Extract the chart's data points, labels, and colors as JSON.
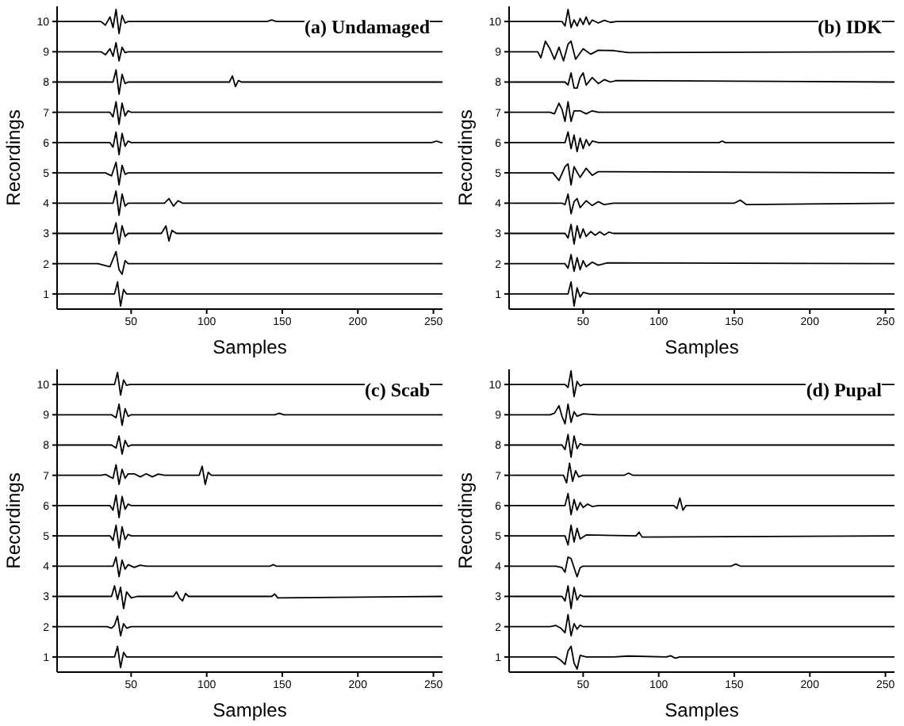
{
  "chart_data": [
    {
      "type": "line",
      "xlabel": "Samples",
      "ylabel": "Recordings",
      "annotations": [
        "(a) Undamaged"
      ],
      "xlim": [
        1,
        256
      ],
      "xticks": [
        50,
        100,
        150,
        200,
        250
      ],
      "ylim": [
        0.5,
        10.5
      ],
      "yticks": [
        1,
        2,
        3,
        4,
        5,
        6,
        7,
        8,
        9,
        10
      ],
      "series": [
        {
          "color": "#000000",
          "x": [
            1,
            30,
            33,
            36,
            38,
            40,
            42,
            44,
            46,
            48,
            140,
            143,
            146,
            256
          ],
          "values": [
            10,
            10,
            9.88,
            10.15,
            9.8,
            10.4,
            9.6,
            10.2,
            9.95,
            10,
            10,
            10.05,
            10,
            10
          ]
        },
        {
          "color": "#000000",
          "x": [
            1,
            30,
            33,
            36,
            38,
            40,
            42,
            44,
            46,
            48,
            256
          ],
          "values": [
            9,
            9,
            8.9,
            9.1,
            8.85,
            9.3,
            8.7,
            9.15,
            8.97,
            9,
            9
          ]
        },
        {
          "color": "#000000",
          "x": [
            1,
            38,
            40,
            42,
            44,
            46,
            48,
            115,
            117,
            119,
            121,
            123,
            256
          ],
          "values": [
            8,
            8,
            8.4,
            7.6,
            8.25,
            7.95,
            8,
            8,
            8.2,
            7.85,
            8.05,
            8,
            8
          ]
        },
        {
          "color": "#000000",
          "x": [
            1,
            36,
            38,
            40,
            42,
            44,
            46,
            48,
            50,
            256
          ],
          "values": [
            7,
            7,
            6.85,
            7.35,
            6.6,
            7.3,
            6.88,
            7.05,
            7,
            7
          ]
        },
        {
          "color": "#000000",
          "x": [
            1,
            36,
            38,
            40,
            42,
            44,
            46,
            48,
            50,
            249,
            252,
            255,
            256
          ],
          "values": [
            6,
            6,
            5.85,
            6.35,
            5.6,
            6.3,
            5.88,
            6.05,
            6,
            6,
            6.05,
            6,
            6
          ]
        },
        {
          "color": "#000000",
          "x": [
            1,
            33,
            37,
            40,
            42,
            44,
            46,
            48,
            256
          ],
          "values": [
            5,
            5,
            4.9,
            5.35,
            4.6,
            5.25,
            4.95,
            5,
            5
          ]
        },
        {
          "color": "#000000",
          "x": [
            1,
            38,
            40,
            42,
            44,
            46,
            48,
            72,
            75,
            78,
            81,
            84,
            256
          ],
          "values": [
            4,
            4,
            4.4,
            3.6,
            4.3,
            3.9,
            4,
            4,
            4.15,
            3.9,
            4.08,
            4,
            4
          ]
        },
        {
          "color": "#000000",
          "x": [
            1,
            38,
            40,
            42,
            44,
            46,
            48,
            70,
            73,
            75,
            77,
            80,
            83,
            256
          ],
          "values": [
            3,
            3,
            3.35,
            2.65,
            3.25,
            2.9,
            3,
            3,
            3.25,
            2.75,
            3.1,
            3,
            3,
            3
          ]
        },
        {
          "color": "#000000",
          "x": [
            1,
            28,
            32,
            36,
            40,
            42,
            44,
            46,
            48,
            256
          ],
          "values": [
            2,
            2,
            1.95,
            1.9,
            2.4,
            1.8,
            1.65,
            2.1,
            2,
            2
          ]
        },
        {
          "color": "#000000",
          "x": [
            1,
            39,
            41,
            43,
            45,
            47,
            256
          ],
          "values": [
            1,
            1,
            1.4,
            0.6,
            1.15,
            1,
            1
          ]
        }
      ]
    },
    {
      "type": "line",
      "xlabel": "Samples",
      "ylabel": "Recordings",
      "annotations": [
        "(b) IDK"
      ],
      "xlim": [
        1,
        256
      ],
      "xticks": [
        50,
        100,
        150,
        200,
        250
      ],
      "ylim": [
        0.5,
        10.5
      ],
      "yticks": [
        1,
        2,
        3,
        4,
        5,
        6,
        7,
        8,
        9,
        10
      ],
      "series": [
        {
          "color": "#000000",
          "x": [
            1,
            36,
            38,
            40,
            42,
            44,
            46,
            48,
            50,
            52,
            54,
            56,
            60,
            64,
            68,
            72,
            256
          ],
          "values": [
            10,
            10,
            9.85,
            10.4,
            9.8,
            10.05,
            9.85,
            10.1,
            9.9,
            10.15,
            9.9,
            10.05,
            9.95,
            10.04,
            9.97,
            10,
            10
          ]
        },
        {
          "color": "#000000",
          "x": [
            1,
            20,
            22,
            25,
            28,
            31,
            34,
            37,
            40,
            42,
            45,
            50,
            55,
            60,
            70,
            80,
            256
          ],
          "values": [
            9,
            9,
            8.8,
            9.35,
            9.1,
            8.75,
            9.15,
            8.7,
            9.25,
            9.35,
            8.75,
            9.1,
            8.92,
            9.05,
            9.04,
            8.97,
            9
          ]
        },
        {
          "color": "#000000",
          "x": [
            1,
            38,
            40,
            42,
            44,
            46,
            48,
            50,
            52,
            56,
            60,
            64,
            68,
            72,
            256
          ],
          "values": [
            8,
            8,
            7.9,
            8.3,
            7.8,
            7.8,
            8.15,
            8.3,
            7.9,
            8.15,
            7.95,
            8.08,
            8,
            8.05,
            8
          ]
        },
        {
          "color": "#000000",
          "x": [
            1,
            28,
            31,
            34,
            36,
            38,
            40,
            42,
            44,
            48,
            52,
            56,
            60,
            256
          ],
          "values": [
            7,
            7,
            6.95,
            7.3,
            7.1,
            6.7,
            7.35,
            6.7,
            7.05,
            7.05,
            6.95,
            7.05,
            7,
            7
          ]
        },
        {
          "color": "#000000",
          "x": [
            1,
            38,
            40,
            42,
            44,
            46,
            48,
            50,
            52,
            54,
            56,
            60,
            140,
            142,
            144,
            256
          ],
          "values": [
            6,
            6,
            6.35,
            5.8,
            6.25,
            5.7,
            6.15,
            5.8,
            6.1,
            5.9,
            6.05,
            6,
            6,
            6.05,
            6,
            6
          ]
        },
        {
          "color": "#000000",
          "x": [
            1,
            30,
            34,
            38,
            40,
            42,
            44,
            48,
            52,
            56,
            60,
            256
          ],
          "values": [
            5,
            5,
            4.75,
            5.2,
            5.3,
            4.6,
            5.2,
            4.85,
            5.15,
            4.92,
            5.04,
            5
          ]
        },
        {
          "color": "#000000",
          "x": [
            1,
            36,
            38,
            40,
            42,
            44,
            46,
            48,
            52,
            56,
            60,
            64,
            70,
            150,
            154,
            158,
            256
          ],
          "values": [
            4,
            4,
            3.95,
            4.3,
            3.65,
            4.05,
            4.15,
            3.85,
            4.08,
            3.92,
            4.05,
            3.95,
            4,
            4,
            4.1,
            3.95,
            4
          ]
        },
        {
          "color": "#000000",
          "x": [
            1,
            38,
            40,
            42,
            44,
            46,
            48,
            50,
            52,
            55,
            58,
            61,
            64,
            67,
            70,
            256
          ],
          "values": [
            3,
            3,
            2.85,
            3.3,
            2.65,
            3.25,
            2.85,
            3.15,
            2.9,
            3.06,
            2.94,
            3.05,
            2.95,
            3.04,
            3,
            3
          ]
        },
        {
          "color": "#000000",
          "x": [
            1,
            38,
            40,
            42,
            44,
            46,
            48,
            50,
            52,
            56,
            60,
            66,
            256
          ],
          "values": [
            2,
            2,
            1.85,
            2.3,
            1.75,
            2.2,
            1.8,
            2.1,
            1.9,
            2.05,
            1.95,
            2.03,
            2
          ]
        },
        {
          "color": "#000000",
          "x": [
            1,
            40,
            42,
            44,
            46,
            48,
            50,
            54,
            256
          ],
          "values": [
            1,
            1,
            1.4,
            0.6,
            1.2,
            0.9,
            1.05,
            1,
            1
          ]
        }
      ]
    },
    {
      "type": "line",
      "xlabel": "Samples",
      "ylabel": "Recordings",
      "annotations": [
        "(c) Scab"
      ],
      "xlim": [
        1,
        256
      ],
      "xticks": [
        50,
        100,
        150,
        200,
        250
      ],
      "ylim": [
        0.5,
        10.5
      ],
      "yticks": [
        1,
        2,
        3,
        4,
        5,
        6,
        7,
        8,
        9,
        10
      ],
      "series": [
        {
          "color": "#000000",
          "x": [
            1,
            39,
            41,
            43,
            45,
            47,
            49,
            256
          ],
          "values": [
            10,
            10,
            10.4,
            9.65,
            10.15,
            9.97,
            10,
            10
          ]
        },
        {
          "color": "#000000",
          "x": [
            1,
            37,
            40,
            42,
            44,
            46,
            48,
            50,
            145,
            148,
            151,
            256
          ],
          "values": [
            9,
            9,
            8.9,
            9.35,
            8.65,
            9.2,
            8.95,
            9,
            9,
            9.05,
            9,
            9
          ]
        },
        {
          "color": "#000000",
          "x": [
            1,
            37,
            40,
            42,
            44,
            46,
            48,
            50,
            256
          ],
          "values": [
            8,
            8,
            7.9,
            8.3,
            7.7,
            8.15,
            7.95,
            8,
            8
          ]
        },
        {
          "color": "#000000",
          "x": [
            1,
            30,
            33,
            36,
            38,
            40,
            42,
            44,
            46,
            48,
            52,
            56,
            60,
            64,
            68,
            72,
            95,
            97,
            99,
            101,
            103,
            256
          ],
          "values": [
            7,
            7,
            7.03,
            6.95,
            6.9,
            7.35,
            6.7,
            7.2,
            6.9,
            7.05,
            7.05,
            6.95,
            7.05,
            6.95,
            7.04,
            7,
            7,
            7.3,
            6.7,
            7.1,
            7,
            7
          ]
        },
        {
          "color": "#000000",
          "x": [
            1,
            36,
            38,
            40,
            42,
            44,
            46,
            48,
            50,
            256
          ],
          "values": [
            6,
            6,
            5.85,
            6.35,
            5.6,
            6.3,
            5.88,
            6.05,
            6,
            6
          ]
        },
        {
          "color": "#000000",
          "x": [
            1,
            36,
            38,
            40,
            42,
            44,
            46,
            48,
            50,
            256
          ],
          "values": [
            5,
            5,
            4.85,
            5.35,
            4.6,
            5.3,
            4.88,
            5.05,
            5,
            5
          ]
        },
        {
          "color": "#000000",
          "x": [
            1,
            38,
            40,
            42,
            44,
            46,
            48,
            52,
            56,
            60,
            142,
            144,
            146,
            256
          ],
          "values": [
            4,
            4,
            4.3,
            3.65,
            4.2,
            3.9,
            4.05,
            3.96,
            4.03,
            4,
            4,
            4.05,
            4,
            4
          ]
        },
        {
          "color": "#000000",
          "x": [
            1,
            37,
            39,
            41,
            43,
            45,
            47,
            50,
            54,
            78,
            80,
            82,
            84,
            86,
            88,
            143,
            145,
            147,
            256
          ],
          "values": [
            3,
            3,
            3.35,
            2.9,
            3.3,
            2.6,
            3.15,
            2.95,
            3,
            3,
            3.15,
            2.95,
            2.85,
            3.1,
            3,
            3,
            3.08,
            2.95,
            3
          ]
        },
        {
          "color": "#000000",
          "x": [
            1,
            34,
            37,
            39,
            41,
            43,
            45,
            47,
            50,
            256
          ],
          "values": [
            2,
            2,
            1.95,
            2.05,
            2.35,
            1.7,
            2.1,
            1.95,
            2,
            2
          ]
        },
        {
          "color": "#000000",
          "x": [
            1,
            39,
            41,
            43,
            45,
            47,
            256
          ],
          "values": [
            1,
            1,
            1.35,
            0.65,
            1.15,
            1,
            1
          ]
        }
      ]
    },
    {
      "type": "line",
      "xlabel": "Samples",
      "ylabel": "Recordings",
      "annotations": [
        "(d) Pupal"
      ],
      "xlim": [
        1,
        256
      ],
      "xticks": [
        50,
        100,
        150,
        200,
        250
      ],
      "ylim": [
        0.5,
        10.5
      ],
      "yticks": [
        1,
        2,
        3,
        4,
        5,
        6,
        7,
        8,
        9,
        10
      ],
      "series": [
        {
          "color": "#000000",
          "x": [
            1,
            38,
            40,
            42,
            44,
            46,
            48,
            50,
            256
          ],
          "values": [
            10,
            10,
            9.9,
            10.45,
            9.6,
            10.1,
            9.95,
            10,
            10
          ]
        },
        {
          "color": "#000000",
          "x": [
            1,
            28,
            31,
            34,
            36,
            38,
            40,
            42,
            44,
            46,
            50,
            60,
            256
          ],
          "values": [
            9,
            9,
            9.05,
            9.3,
            8.95,
            8.7,
            9.35,
            8.75,
            9.1,
            8.95,
            9.03,
            9,
            9
          ]
        },
        {
          "color": "#000000",
          "x": [
            1,
            36,
            38,
            40,
            42,
            44,
            46,
            48,
            50,
            256
          ],
          "values": [
            8,
            8,
            7.85,
            8.35,
            7.6,
            8.3,
            7.88,
            8.05,
            8,
            8
          ]
        },
        {
          "color": "#000000",
          "x": [
            1,
            37,
            39,
            41,
            43,
            45,
            47,
            50,
            77,
            80,
            83,
            256
          ],
          "values": [
            7,
            7,
            6.75,
            7.4,
            6.8,
            7.15,
            6.95,
            7,
            7,
            7.07,
            7,
            7
          ]
        },
        {
          "color": "#000000",
          "x": [
            1,
            38,
            40,
            42,
            44,
            46,
            48,
            50,
            53,
            56,
            60,
            110,
            112,
            114,
            116,
            118,
            256
          ],
          "values": [
            6,
            6,
            6.4,
            5.7,
            6.2,
            5.85,
            6.1,
            5.94,
            6.05,
            5.97,
            6,
            6,
            5.9,
            6.25,
            5.85,
            6,
            6
          ]
        },
        {
          "color": "#000000",
          "x": [
            1,
            38,
            40,
            42,
            44,
            46,
            48,
            52,
            85,
            87,
            89,
            256
          ],
          "values": [
            5,
            5,
            4.7,
            5.35,
            4.8,
            5.25,
            4.9,
            5.03,
            5,
            5.12,
            4.96,
            5
          ]
        },
        {
          "color": "#000000",
          "x": [
            1,
            32,
            36,
            38,
            40,
            42,
            44,
            46,
            48,
            50,
            148,
            151,
            154,
            256
          ],
          "values": [
            4,
            4,
            3.95,
            3.8,
            4.3,
            4.25,
            3.95,
            3.65,
            3.95,
            4,
            4,
            4.07,
            4,
            4
          ]
        },
        {
          "color": "#000000",
          "x": [
            1,
            36,
            38,
            40,
            42,
            44,
            46,
            48,
            50,
            256
          ],
          "values": [
            3,
            3,
            2.85,
            3.35,
            2.6,
            3.3,
            2.88,
            3.05,
            3,
            3
          ]
        },
        {
          "color": "#000000",
          "x": [
            1,
            28,
            32,
            35,
            38,
            40,
            42,
            44,
            46,
            48,
            50,
            256
          ],
          "values": [
            2,
            2,
            2.04,
            1.96,
            1.8,
            2.4,
            1.7,
            2.1,
            1.92,
            2.05,
            2,
            2
          ]
        },
        {
          "color": "#000000",
          "x": [
            1,
            32,
            35,
            38,
            40,
            42,
            44,
            46,
            48,
            52,
            70,
            80,
            105,
            108,
            111,
            114,
            256
          ],
          "values": [
            1,
            1,
            0.9,
            0.75,
            1.2,
            1.35,
            0.8,
            0.6,
            1.05,
            1,
            1,
            1.03,
            1,
            1.04,
            0.96,
            1,
            1
          ]
        }
      ]
    }
  ]
}
